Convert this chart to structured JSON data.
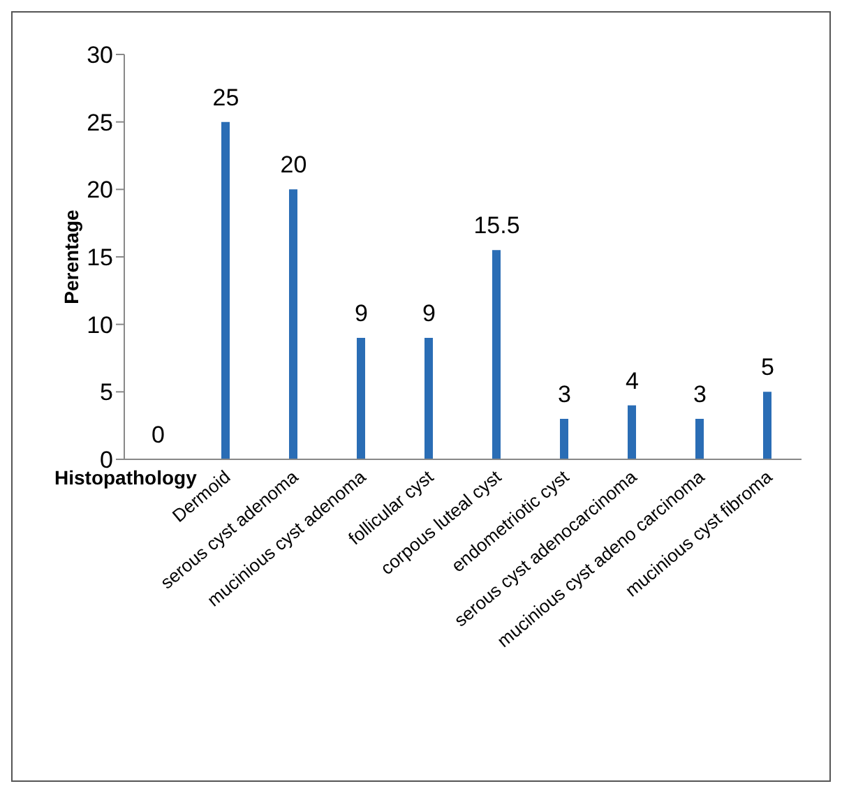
{
  "chart_data": {
    "type": "bar",
    "xlabel": "Histopathology",
    "ylabel": "Perentage",
    "categories": [
      null,
      "Dermoid",
      "serous cyst adenoma",
      "mucinious cyst adenoma",
      "follicular cyst",
      "corpous luteal cyst",
      "endometriotic cyst",
      "serous cyst adenocarcinoma",
      "mucinious cyst adeno carcinoma",
      "mucinious cyst fibroma"
    ],
    "values": [
      0,
      25,
      20,
      9,
      9,
      15.5,
      3,
      4,
      3,
      5
    ],
    "color": "#2a6db5",
    "ylim": [
      0,
      30
    ],
    "yticks": [
      0,
      5,
      10,
      15,
      20,
      25,
      30
    ],
    "data_labels": true
  }
}
